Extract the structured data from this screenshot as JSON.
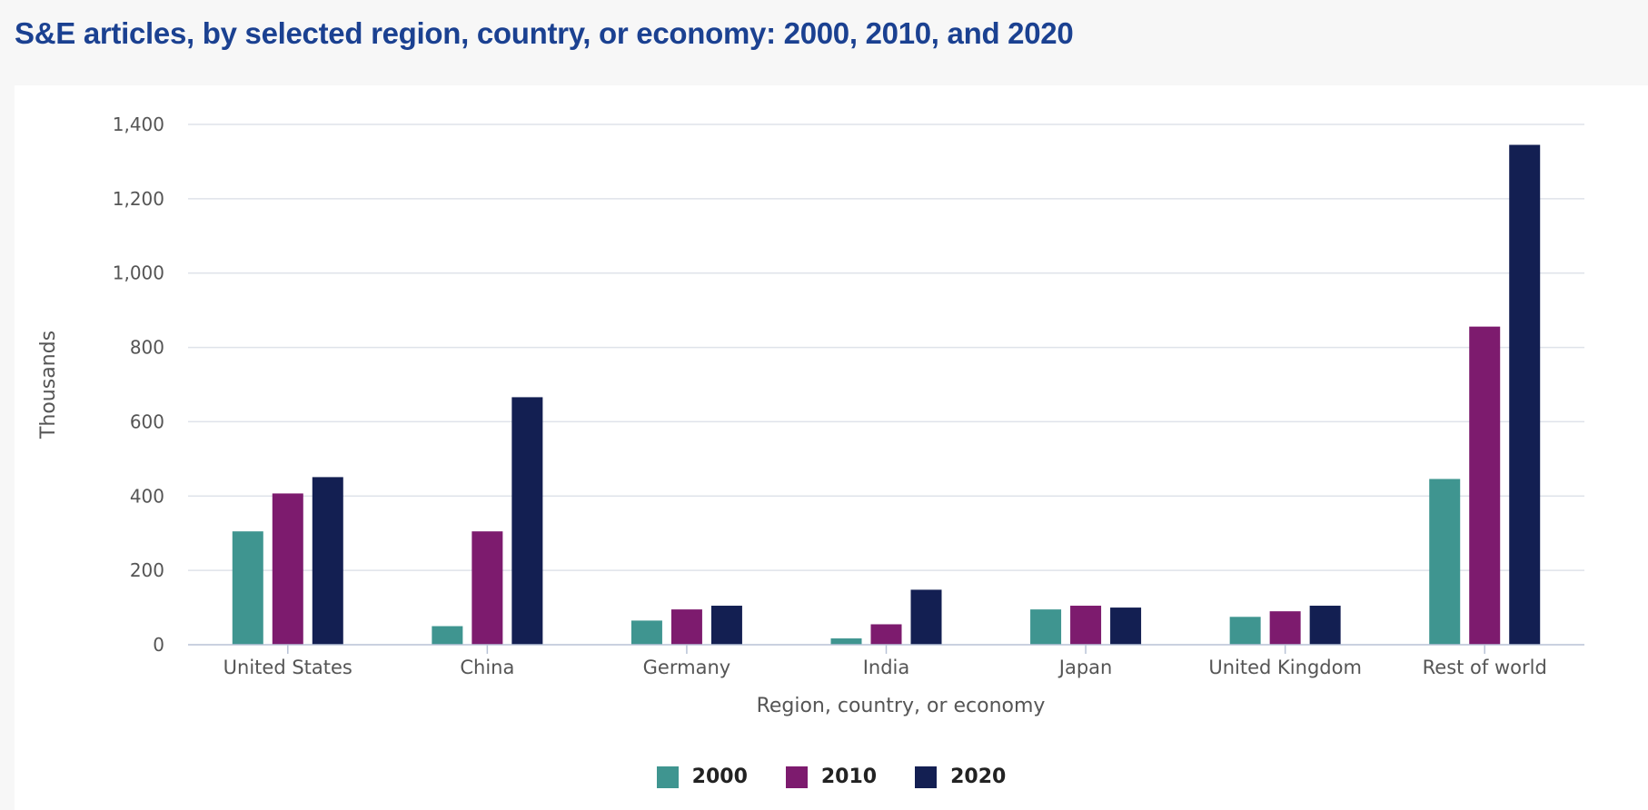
{
  "title": "S&E articles, by selected region, country, or economy: 2000, 2010, and 2020",
  "chart_data": {
    "type": "bar",
    "categories": [
      "United States",
      "China",
      "Germany",
      "India",
      "Japan",
      "United Kingdom",
      "Rest of world"
    ],
    "series": [
      {
        "name": "2000",
        "color": "#3f9590",
        "values": [
          305,
          50,
          65,
          17,
          95,
          75,
          446
        ]
      },
      {
        "name": "2010",
        "color": "#7d1b6e",
        "values": [
          407,
          305,
          95,
          55,
          105,
          90,
          856
        ]
      },
      {
        "name": "2020",
        "color": "#131f52",
        "values": [
          451,
          666,
          105,
          148,
          100,
          105,
          1345
        ]
      }
    ],
    "xlabel": "Region, country, or economy",
    "ylabel": "Thousands",
    "ylim": [
      0,
      1400
    ],
    "yticks": [
      0,
      200,
      400,
      600,
      800,
      1000,
      1200,
      1400
    ],
    "ytick_labels": [
      "0",
      "200",
      "400",
      "600",
      "800",
      "1,000",
      "1,200",
      "1,400"
    ],
    "grid": true,
    "legend_position": "bottom-center"
  }
}
